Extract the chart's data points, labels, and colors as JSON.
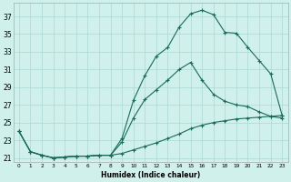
{
  "xlabel": "Humidex (Indice chaleur)",
  "xlim": [
    -0.5,
    23.5
  ],
  "ylim": [
    20.5,
    38.5
  ],
  "yticks": [
    21,
    23,
    25,
    27,
    29,
    31,
    33,
    35,
    37
  ],
  "xticks": [
    0,
    1,
    2,
    3,
    4,
    5,
    6,
    7,
    8,
    9,
    10,
    11,
    12,
    13,
    14,
    15,
    16,
    17,
    18,
    19,
    20,
    21,
    22,
    23
  ],
  "bg_color": "#cff0eb",
  "grid_color": "#aad8d0",
  "line_color": "#1a6b5a",
  "line1_x": [
    0,
    1,
    2,
    3,
    4,
    5,
    6,
    7,
    8,
    9,
    10,
    11,
    12,
    13,
    14,
    15,
    16,
    17,
    18,
    19,
    20,
    21,
    22,
    23
  ],
  "line1_y": [
    24.0,
    21.7,
    21.3,
    21.0,
    21.1,
    21.2,
    21.2,
    21.3,
    21.3,
    23.2,
    27.5,
    30.3,
    32.5,
    33.5,
    35.8,
    37.3,
    37.7,
    37.2,
    35.2,
    35.1,
    33.5,
    32.0,
    30.5,
    25.8
  ],
  "line2_x": [
    0,
    1,
    2,
    3,
    4,
    5,
    6,
    7,
    8,
    9,
    10,
    11,
    12,
    13,
    14,
    15,
    16,
    17,
    18,
    19,
    20,
    21,
    22,
    23
  ],
  "line2_y": [
    24.0,
    21.7,
    21.3,
    21.0,
    21.1,
    21.2,
    21.2,
    21.3,
    21.3,
    22.8,
    25.5,
    27.6,
    28.7,
    29.8,
    31.0,
    31.8,
    29.8,
    28.2,
    27.4,
    27.0,
    26.8,
    26.2,
    25.7,
    25.5
  ],
  "line3_x": [
    0,
    1,
    2,
    3,
    4,
    5,
    6,
    7,
    8,
    9,
    10,
    11,
    12,
    13,
    14,
    15,
    16,
    17,
    18,
    19,
    20,
    21,
    22,
    23
  ],
  "line3_y": [
    24.0,
    21.7,
    21.3,
    21.0,
    21.1,
    21.2,
    21.2,
    21.3,
    21.3,
    21.5,
    21.9,
    22.3,
    22.7,
    23.2,
    23.7,
    24.3,
    24.7,
    25.0,
    25.2,
    25.4,
    25.5,
    25.6,
    25.7,
    25.8
  ],
  "marker": "+",
  "markersize": 3,
  "linewidth": 0.8
}
